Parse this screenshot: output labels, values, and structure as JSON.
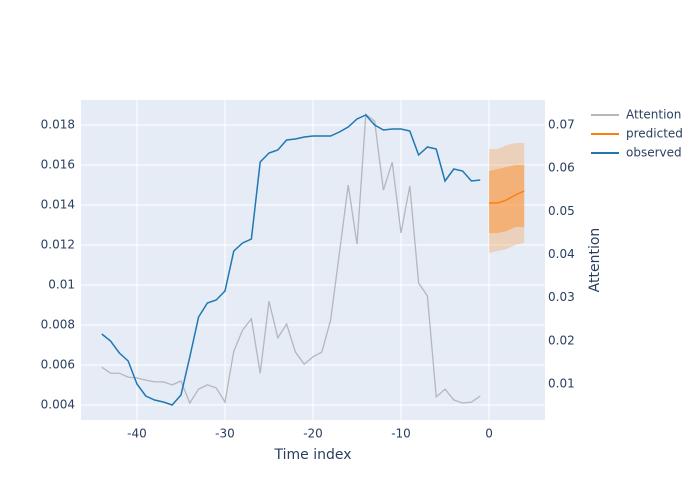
{
  "chart_data": {
    "type": "line",
    "xlabel": "Time index",
    "y2label": "Attention",
    "xlim": [
      -46.36,
      6.36
    ],
    "xticks": [
      -40,
      -30,
      -20,
      -10,
      0
    ],
    "ylim": [
      0.00325,
      0.01925
    ],
    "yticks": [
      0.004,
      0.006,
      0.008,
      0.01,
      0.012,
      0.014,
      0.016,
      0.018
    ],
    "y2lim": [
      0.00166,
      0.0758
    ],
    "y2ticks": [
      0.01,
      0.02,
      0.03,
      0.04,
      0.05,
      0.06,
      0.07
    ],
    "grid": true,
    "legend": "outside-right",
    "bands": [
      {
        "color": "#ff7f0e",
        "opacity": 0.25,
        "x": [
          0,
          1,
          2,
          3,
          4
        ],
        "upper": [
          0.0168,
          0.0168,
          0.017,
          0.0171,
          0.0171
        ],
        "lower": [
          0.0116,
          0.0117,
          0.0118,
          0.012,
          0.0121
        ]
      },
      {
        "color": "#ff7f0e",
        "opacity": 0.4,
        "x": [
          0,
          1,
          2,
          3,
          4
        ],
        "upper": [
          0.0157,
          0.0158,
          0.0159,
          0.016,
          0.016
        ],
        "lower": [
          0.0126,
          0.0126,
          0.0127,
          0.0129,
          0.0129
        ]
      }
    ],
    "series": [
      {
        "name": "Attention",
        "color": "#b4b7bc",
        "axis": "y2",
        "x": [
          -44,
          -43,
          -42,
          -41,
          -40,
          -39,
          -38,
          -37,
          -36,
          -35,
          -34,
          -33,
          -32,
          -31,
          -30,
          -29,
          -28,
          -27,
          -26,
          -25,
          -24,
          -23,
          -22,
          -21,
          -20,
          -19,
          -18,
          -17,
          -16,
          -15,
          -14,
          -13,
          -12,
          -11,
          -10,
          -9,
          -8,
          -7,
          -6,
          -5,
          -4,
          -3,
          -2,
          -1
        ],
        "values": [
          0.0139,
          0.0125,
          0.0125,
          0.0116,
          0.0114,
          0.0109,
          0.0105,
          0.0105,
          0.0098,
          0.0107,
          0.0056,
          0.0088,
          0.0098,
          0.0091,
          0.0058,
          0.0176,
          0.0225,
          0.0251,
          0.0125,
          0.0292,
          0.0207,
          0.0239,
          0.0174,
          0.0146,
          0.0163,
          0.0174,
          0.0248,
          0.0403,
          0.0561,
          0.0424,
          0.0725,
          0.0709,
          0.0549,
          0.0614,
          0.045,
          0.0559,
          0.0334,
          0.0304,
          0.007,
          0.0088,
          0.0063,
          0.0056,
          0.0058,
          0.0072
        ]
      },
      {
        "name": "predicted",
        "color": "#ff7f0e",
        "x": [
          0,
          1,
          2,
          3,
          4
        ],
        "values": [
          0.0141,
          0.0141,
          0.01425,
          0.0145,
          0.0147
        ]
      },
      {
        "name": "observed",
        "color": "#1f77b4",
        "x": [
          -44,
          -43,
          -42,
          -41,
          -40,
          -39,
          -38,
          -37,
          -36,
          -35,
          -34,
          -33,
          -32,
          -31,
          -30,
          -29,
          -28,
          -27,
          -26,
          -25,
          -24,
          -23,
          -22,
          -21,
          -20,
          -19,
          -18,
          -17,
          -16,
          -15,
          -14,
          -13,
          -12,
          -11,
          -10,
          -9,
          -8,
          -7,
          -6,
          -5,
          -4,
          -3,
          -2,
          -1
        ],
        "values": [
          0.00755,
          0.0072,
          0.0066,
          0.0062,
          0.00505,
          0.00445,
          0.00425,
          0.00415,
          0.004,
          0.0045,
          0.0064,
          0.0084,
          0.0091,
          0.00925,
          0.0097,
          0.0117,
          0.0121,
          0.0123,
          0.01615,
          0.0166,
          0.01675,
          0.01725,
          0.0173,
          0.0174,
          0.01745,
          0.01745,
          0.01745,
          0.01765,
          0.0179,
          0.0183,
          0.0185,
          0.018,
          0.01775,
          0.0178,
          0.0178,
          0.0177,
          0.0165,
          0.0169,
          0.0168,
          0.0152,
          0.0158,
          0.0157,
          0.0152,
          0.01525
        ]
      }
    ]
  }
}
